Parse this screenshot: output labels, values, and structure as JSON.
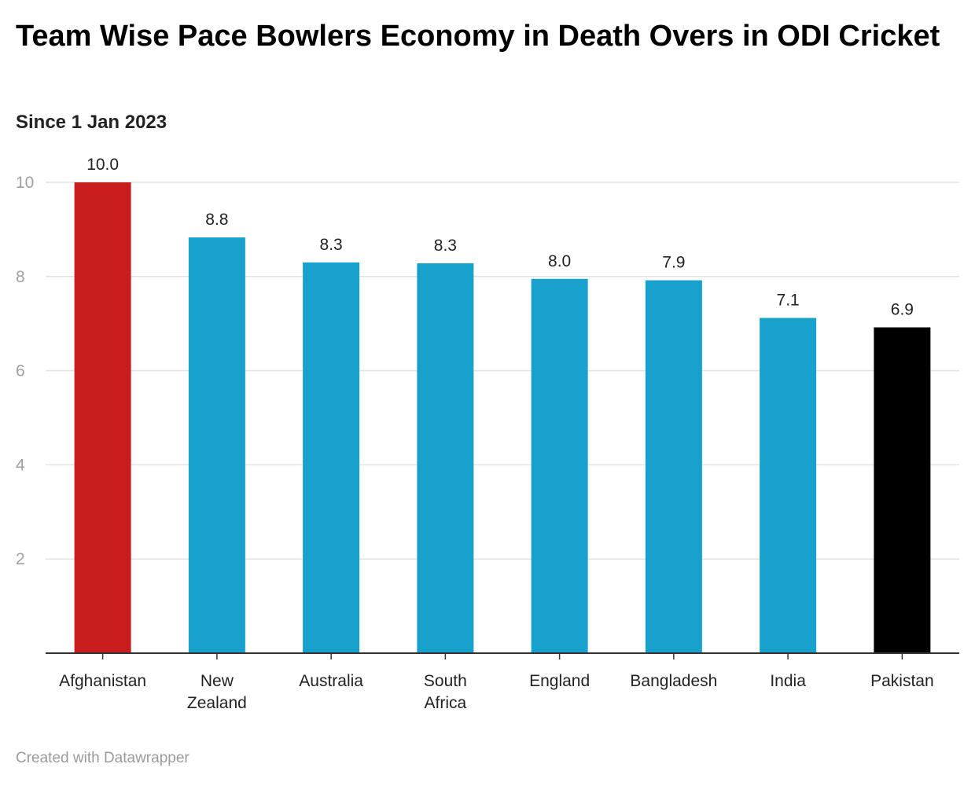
{
  "chart_data": {
    "type": "bar",
    "title": "Team Wise Pace Bowlers Economy in Death Overs in ODI Cricket",
    "subtitle": "Since 1 Jan 2023",
    "categories": [
      "Afghanistan",
      "New Zealand",
      "Australia",
      "South Africa",
      "England",
      "Bangladesh",
      "India",
      "Pakistan"
    ],
    "category_lines": [
      [
        "Afghanistan"
      ],
      [
        "New",
        "Zealand"
      ],
      [
        "Australia"
      ],
      [
        "South",
        "Africa"
      ],
      [
        "England"
      ],
      [
        "Bangladesh"
      ],
      [
        "India"
      ],
      [
        "Pakistan"
      ]
    ],
    "values": [
      10.0,
      8.83,
      8.3,
      8.28,
      7.95,
      7.92,
      7.12,
      6.92
    ],
    "value_labels": [
      "10.0",
      "8.8",
      "8.3",
      "8.3",
      "8.0",
      "7.9",
      "7.1",
      "6.9"
    ],
    "colors": [
      "#c71e1d",
      "#18a1cd",
      "#18a1cd",
      "#18a1cd",
      "#18a1cd",
      "#18a1cd",
      "#18a1cd",
      "#000000"
    ],
    "yticks": [
      2,
      4,
      6,
      8,
      10
    ],
    "ylim": [
      0,
      10
    ],
    "grid": true,
    "xlabel": "",
    "ylabel": ""
  },
  "footer": {
    "credit": "Created with Datawrapper"
  }
}
